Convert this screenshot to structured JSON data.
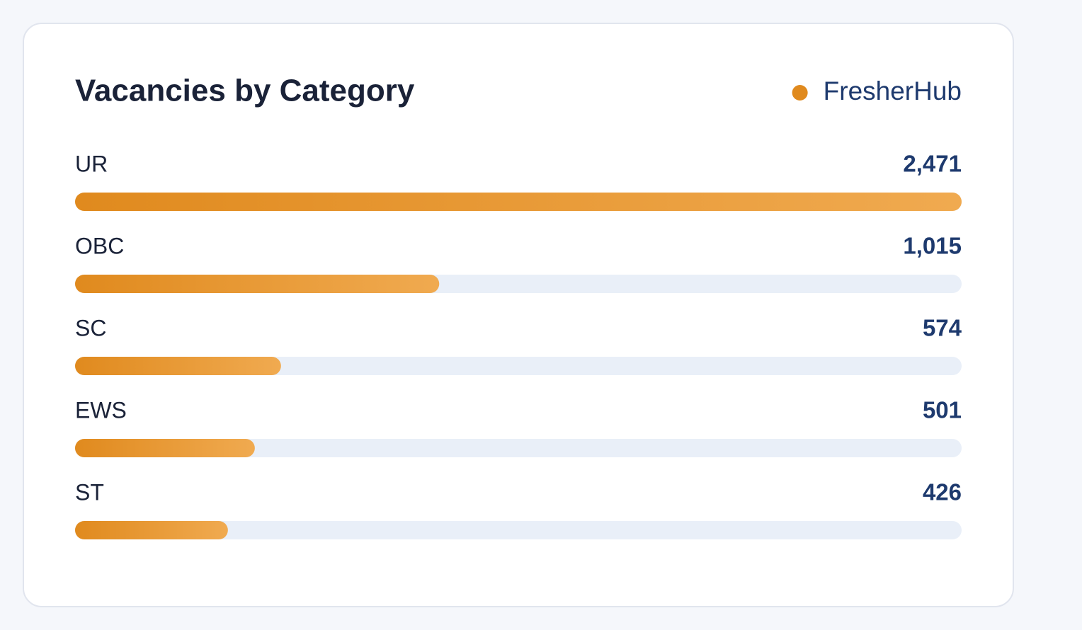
{
  "chart_data": {
    "type": "bar",
    "orientation": "horizontal",
    "title": "Vacancies by Category",
    "categories": [
      "UR",
      "OBC",
      "SC",
      "EWS",
      "ST"
    ],
    "series": [
      {
        "name": "FresherHub",
        "color": "#e08a1e",
        "values": [
          2471,
          1015,
          574,
          501,
          426
        ],
        "value_labels": [
          "2,471",
          "1,015",
          "574",
          "501",
          "426"
        ]
      }
    ],
    "legend": "top-right"
  }
}
